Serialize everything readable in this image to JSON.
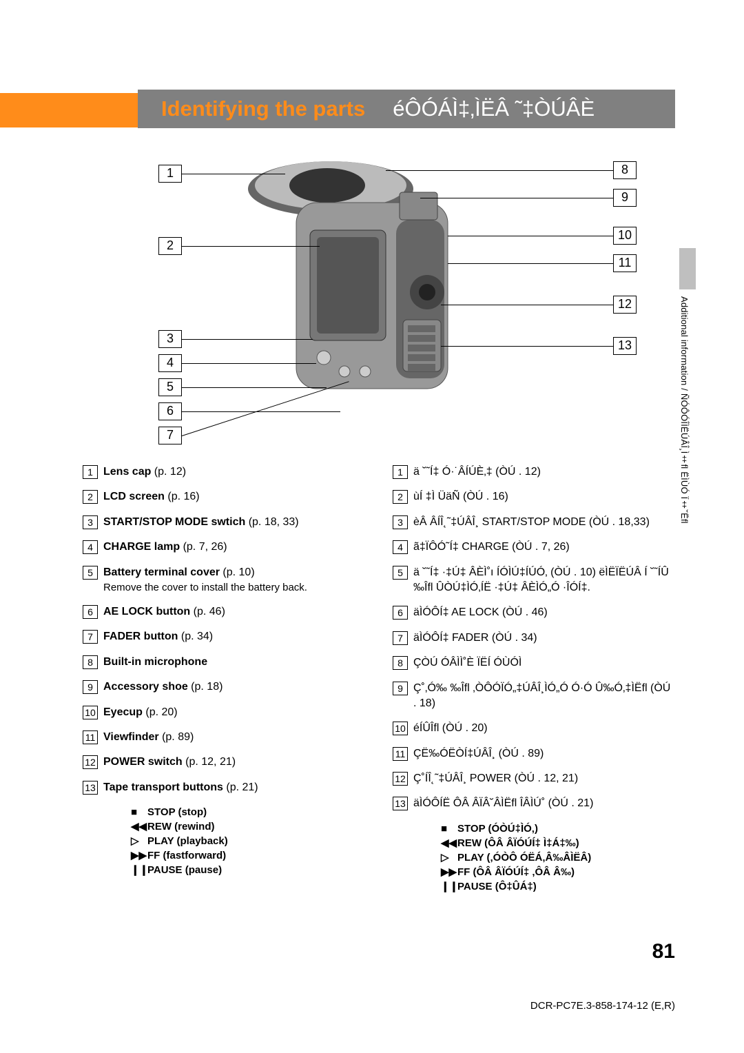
{
  "header": {
    "title_left": "Identifying the parts",
    "title_right": "éÔÓÁÌ‡‚ÌËÂ ˜‡ÒÚÂÈ"
  },
  "callouts_left": [
    "1",
    "2",
    "3",
    "4",
    "5",
    "6",
    "7"
  ],
  "callouts_right": [
    "8",
    "9",
    "10",
    "11",
    "12",
    "13"
  ],
  "left_col": [
    {
      "n": "1",
      "bold": "Lens cap",
      "rest": " (p. 12)"
    },
    {
      "n": "2",
      "bold": "LCD screen",
      "rest": " (p. 16)"
    },
    {
      "n": "3",
      "bold": "START/STOP MODE swtich",
      "rest": " (p. 18, 33)"
    },
    {
      "n": "4",
      "bold": "CHARGE lamp",
      "rest": " (p. 7, 26)"
    },
    {
      "n": "5",
      "bold": "Battery terminal cover",
      "rest": " (p. 10)",
      "extra": "Remove the cover to install the battery back."
    },
    {
      "n": "6",
      "bold": "AE LOCK button",
      "rest": " (p. 46)"
    },
    {
      "n": "7",
      "bold": "FADER button",
      "rest": " (p. 34)"
    },
    {
      "n": "8",
      "bold": "Built-in microphone",
      "rest": ""
    },
    {
      "n": "9",
      "bold": "Accessory shoe",
      "rest": " (p. 18)"
    },
    {
      "n": "10",
      "bold": "Eyecup",
      "rest": " (p. 20)"
    },
    {
      "n": "11",
      "bold": "Viewfinder",
      "rest": " (p. 89)"
    },
    {
      "n": "12",
      "bold": "POWER switch",
      "rest": " (p. 12, 21)"
    },
    {
      "n": "13",
      "bold": "Tape transport buttons",
      "rest": " (p. 21)"
    }
  ],
  "left_sub": [
    {
      "icon": "■",
      "label": "STOP (stop)"
    },
    {
      "icon": "◀◀",
      "label": "REW (rewind)"
    },
    {
      "icon": "▷",
      "label": "PLAY (playback)"
    },
    {
      "icon": "▶▶",
      "label": "FF (fastforward)"
    },
    {
      "icon": "❙❙",
      "label": "PAUSE (pause)"
    }
  ],
  "right_col": [
    {
      "n": "1",
      "text": "ä ˘˜Í‡ Ó·˙ÂÍÚÈ‚‡   (ÒÚ . 12)"
    },
    {
      "n": "2",
      "text": "ùÍ ‡Ì ÜäÑ   (ÒÚ . 16)"
    },
    {
      "n": "3",
      "text": "èÂ ÂÍÎ˛˜‡ÚÂÎ¸ START/STOP MODE (ÒÚ . 18,33)"
    },
    {
      "n": "4",
      "text": "ã‡ÏÔÓ˜Í‡ CHARGE (ÒÚ . 7, 26)"
    },
    {
      "n": "5",
      "text": "ä ˘˜Í‡ ·‡Ú‡ ÂÈÌ˚ı ÍÓÌÚ‡ÍÚÓ‚   (ÒÚ . 10) ëÌËÏËÚÂ Í ˘˜ÍÛ ‰Îﬂ ÛÒÚ‡ÌÓ‚ÍË ·‡Ú‡ ÂÈÌÓ„Ó ·ÎÓÍ‡."
    },
    {
      "n": "6",
      "text": "äÌÓÔÍ‡ AE LOCK (ÒÚ . 46)"
    },
    {
      "n": "7",
      "text": "äÌÓÔÍ‡ FADER (ÒÚ . 34)"
    },
    {
      "n": "8",
      "text": "ÇÒÚ ÓÂÌÌ˚È  ÏËÍ ÓÙÓÌ"
    },
    {
      "n": "9",
      "text": "Ç˚‚Ó‰ ‰Îﬂ ‚ÒÔÓÏÓ„‡ÚÂÎ¸ÌÓ„Ó Ó·Ó Û‰Ó‚‡ÌËﬂ  (ÒÚ . 18)"
    },
    {
      "n": "10",
      "text": "éÍÛÎﬂ    (ÒÚ . 20)"
    },
    {
      "n": "11",
      "text": "ÇË‰ÓËÒÍ‡ÚÂÎ¸ (ÒÚ . 89)"
    },
    {
      "n": "12",
      "text": "Ç˚ÍÎ˛˜‡ÚÂÎ¸ POWER  (ÒÚ . 12, 21)"
    },
    {
      "n": "13",
      "text": "äÌÓÔÍË ÔÂ ÂÏÂ˘ÂÌËﬂ ÎÂÌÚ˚  (ÒÚ . 21)"
    }
  ],
  "right_sub": [
    {
      "icon": "■",
      "label": "STOP (ÓÒÚ‡ÌÓ‚)"
    },
    {
      "icon": "◀◀",
      "label": "REW (ÔÂ ÂÏÓÚÍ‡ Ì‡Á‡‰)"
    },
    {
      "icon": "▷",
      "label": "PLAY (‚ÓÒÔ ÓËÁ‚Â‰ÂÌËÂ)"
    },
    {
      "icon": "▶▶",
      "label": "FF (ÔÂ ÂÏÓÚÍ‡ ‚ÔÂ Â‰)"
    },
    {
      "icon": "❙❙",
      "label": "PAUSE (Ô‡ÛÁ‡)"
    }
  ],
  "side_text": "Additional information / ÑÓÔÓÎÌËÚÂÎ¸Ì‡ﬂ ËÌÙÓ Ï‡˘Ëﬂ",
  "page_number": "81",
  "footer": "DCR-PC7E.3-858-174-12 (E,R)"
}
